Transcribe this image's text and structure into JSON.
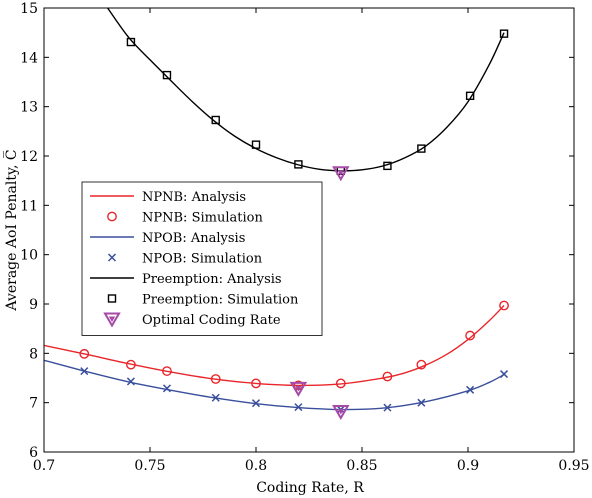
{
  "chart_data": {
    "type": "line",
    "xlabel": "Coding Rate, R",
    "ylabel": "Average AoI Penalty, C̅",
    "xlim": [
      0.7,
      0.95
    ],
    "ylim": [
      6,
      15
    ],
    "xticks": [
      0.7,
      0.75,
      0.8,
      0.85,
      0.9,
      0.95
    ],
    "yticks": [
      6,
      7,
      8,
      9,
      10,
      11,
      12,
      13,
      14,
      15
    ],
    "xtick_labels": [
      "0.7",
      "0.75",
      "0.8",
      "0.85",
      "0.9",
      "0.95"
    ],
    "ytick_labels": [
      "6",
      "7",
      "8",
      "9",
      "10",
      "11",
      "12",
      "13",
      "14",
      "15"
    ],
    "grid": false,
    "legend_position": "middle-left",
    "series": [
      {
        "name": "NPNB: Analysis",
        "kind": "line",
        "color": "#e8262b",
        "x": [
          0.7,
          0.72,
          0.74,
          0.76,
          0.78,
          0.8,
          0.82,
          0.84,
          0.86,
          0.87,
          0.88,
          0.89,
          0.9,
          0.91,
          0.917
        ],
        "y": [
          8.16,
          7.98,
          7.79,
          7.62,
          7.48,
          7.39,
          7.35,
          7.38,
          7.5,
          7.6,
          7.76,
          7.98,
          8.28,
          8.66,
          8.97
        ]
      },
      {
        "name": "NPNB: Simulation",
        "kind": "circle",
        "color": "#e8262b",
        "x": [
          0.719,
          0.741,
          0.758,
          0.781,
          0.8,
          0.82,
          0.84,
          0.862,
          0.878,
          0.901,
          0.917
        ],
        "y": [
          7.99,
          7.77,
          7.64,
          7.48,
          7.39,
          7.35,
          7.39,
          7.53,
          7.77,
          8.36,
          8.97
        ]
      },
      {
        "name": "NPOB: Analysis",
        "kind": "line",
        "color": "#3a4f9c",
        "x": [
          0.7,
          0.72,
          0.74,
          0.76,
          0.78,
          0.8,
          0.82,
          0.84,
          0.86,
          0.88,
          0.9,
          0.91,
          0.917
        ],
        "y": [
          7.86,
          7.63,
          7.42,
          7.25,
          7.1,
          6.98,
          6.9,
          6.86,
          6.89,
          7.02,
          7.24,
          7.41,
          7.57
        ]
      },
      {
        "name": "NPOB: Simulation",
        "kind": "cross",
        "color": "#3a4f9c",
        "x": [
          0.719,
          0.741,
          0.758,
          0.781,
          0.8,
          0.82,
          0.84,
          0.862,
          0.878,
          0.901,
          0.917
        ],
        "y": [
          7.64,
          7.43,
          7.29,
          7.1,
          6.99,
          6.91,
          6.86,
          6.9,
          7.0,
          7.26,
          7.58
        ]
      },
      {
        "name": "Preemption: Analysis",
        "kind": "line",
        "color": "#000000",
        "x": [
          0.73,
          0.74,
          0.75,
          0.76,
          0.77,
          0.78,
          0.79,
          0.8,
          0.81,
          0.82,
          0.83,
          0.84,
          0.85,
          0.86,
          0.87,
          0.88,
          0.89,
          0.9,
          0.91,
          0.917
        ],
        "y": [
          15.0,
          14.4,
          13.95,
          13.52,
          13.1,
          12.72,
          12.4,
          12.15,
          11.96,
          11.82,
          11.73,
          11.7,
          11.72,
          11.8,
          11.96,
          12.2,
          12.58,
          13.1,
          13.85,
          14.5
        ]
      },
      {
        "name": "Preemption: Simulation",
        "kind": "square",
        "color": "#000000",
        "x": [
          0.741,
          0.758,
          0.781,
          0.8,
          0.82,
          0.84,
          0.862,
          0.878,
          0.901,
          0.917
        ],
        "y": [
          14.31,
          13.64,
          12.73,
          12.23,
          11.83,
          11.7,
          11.8,
          12.15,
          13.22,
          14.48
        ]
      },
      {
        "name": "Optimal Coding Rate",
        "kind": "triangle",
        "color": "#a64aa8",
        "x": [
          0.84,
          0.82,
          0.84
        ],
        "y": [
          11.66,
          7.29,
          6.82
        ]
      }
    ]
  }
}
